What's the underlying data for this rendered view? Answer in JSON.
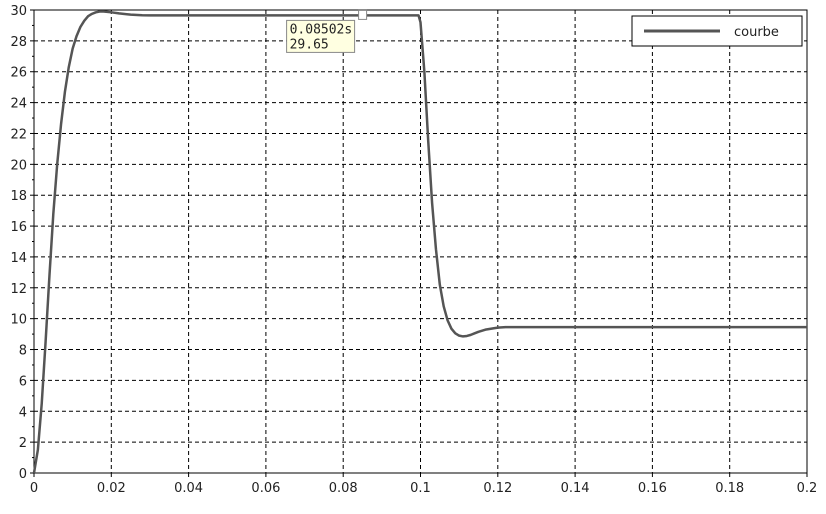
{
  "chart_data": {
    "type": "line",
    "title": "",
    "xlabel": "",
    "ylabel": "",
    "xlim": [
      0,
      0.2
    ],
    "ylim": [
      0,
      30
    ],
    "x_ticks": [
      0,
      0.02,
      0.04,
      0.06,
      0.08,
      0.1,
      0.12,
      0.14,
      0.16,
      0.18,
      0.2
    ],
    "x_tick_labels": [
      "0",
      "0.02",
      "0.04",
      "0.06",
      "0.08",
      "0.1",
      "0.12",
      "0.14",
      "0.16",
      "0.18",
      "0.2"
    ],
    "y_ticks": [
      0,
      2,
      4,
      6,
      8,
      10,
      12,
      14,
      16,
      18,
      20,
      22,
      24,
      26,
      28,
      30
    ],
    "y_tick_labels": [
      "0",
      "2",
      "4",
      "6",
      "8",
      "10",
      "12",
      "14",
      "16",
      "18",
      "20",
      "22",
      "24",
      "26",
      "28",
      "30"
    ],
    "grid": true,
    "grid_style": "dashed",
    "legend_position": "top-right",
    "colors": {
      "line": "#555555",
      "grid": "#000000",
      "axis": "#000000",
      "datatip_bg": "#ffffe1",
      "datatip_border": "#888888"
    },
    "series": [
      {
        "name": "courbe",
        "x": [
          0,
          0.001,
          0.002,
          0.003,
          0.004,
          0.005,
          0.006,
          0.007,
          0.008,
          0.009,
          0.01,
          0.011,
          0.012,
          0.013,
          0.014,
          0.015,
          0.016,
          0.017,
          0.018,
          0.019,
          0.02,
          0.022,
          0.025,
          0.028,
          0.03,
          0.04,
          0.05,
          0.06,
          0.07,
          0.08,
          0.085,
          0.09,
          0.095,
          0.0995,
          0.1,
          0.101,
          0.102,
          0.103,
          0.104,
          0.105,
          0.106,
          0.107,
          0.108,
          0.109,
          0.11,
          0.111,
          0.112,
          0.113,
          0.114,
          0.115,
          0.117,
          0.12,
          0.122,
          0.125,
          0.13,
          0.14,
          0.15,
          0.16,
          0.17,
          0.18,
          0.19,
          0.2
        ],
        "y": [
          0,
          1.5,
          4.5,
          8.5,
          12.8,
          16.8,
          20.0,
          22.6,
          24.7,
          26.3,
          27.5,
          28.3,
          28.9,
          29.3,
          29.6,
          29.75,
          29.85,
          29.9,
          29.9,
          29.88,
          29.85,
          29.78,
          29.7,
          29.66,
          29.65,
          29.65,
          29.65,
          29.65,
          29.65,
          29.65,
          29.65,
          29.65,
          29.65,
          29.65,
          29.2,
          26.0,
          21.5,
          17.5,
          14.5,
          12.2,
          10.8,
          9.9,
          9.35,
          9.05,
          8.9,
          8.85,
          8.88,
          8.95,
          9.05,
          9.15,
          9.3,
          9.42,
          9.45,
          9.45,
          9.45,
          9.45,
          9.45,
          9.45,
          9.45,
          9.45,
          9.45,
          9.45
        ]
      }
    ],
    "datatip": {
      "x": 0.08502,
      "y": 29.65,
      "x_text": "0.08502s",
      "y_text": "29.65"
    }
  }
}
